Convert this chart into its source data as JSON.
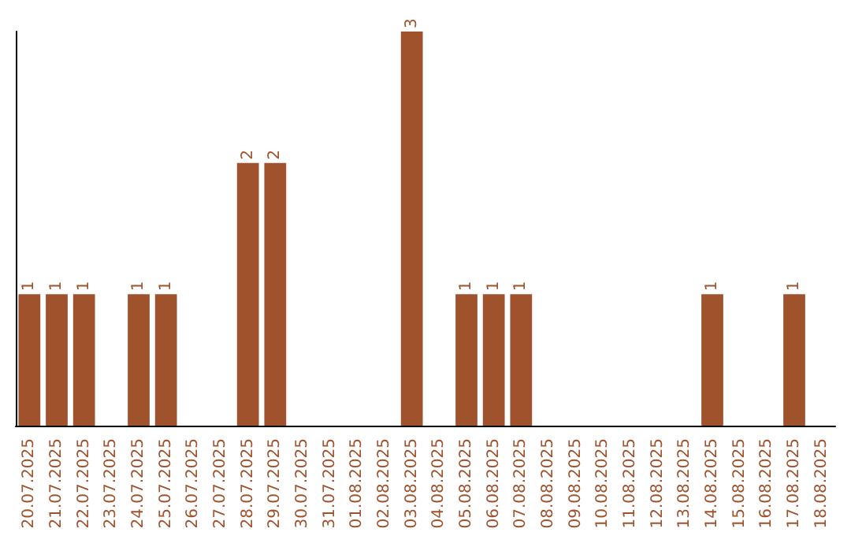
{
  "chart_data": {
    "type": "bar",
    "categories": [
      "20.07.2025",
      "21.07.2025",
      "22.07.2025",
      "23.07.2025",
      "24.07.2025",
      "25.07.2025",
      "26.07.2025",
      "27.07.2025",
      "28.07.2025",
      "29.07.2025",
      "30.07.2025",
      "31.07.2025",
      "01.08.2025",
      "02.08.2025",
      "03.08.2025",
      "04.08.2025",
      "05.08.2025",
      "06.08.2025",
      "07.08.2025",
      "08.08.2025",
      "09.08.2025",
      "10.08.2025",
      "11.08.2025",
      "12.08.2025",
      "13.08.2025",
      "14.08.2025",
      "15.08.2025",
      "16.08.2025",
      "17.08.2025",
      "18.08.2025"
    ],
    "values": [
      1,
      1,
      1,
      0,
      1,
      1,
      0,
      0,
      2,
      2,
      0,
      0,
      0,
      0,
      3,
      0,
      1,
      1,
      1,
      0,
      0,
      0,
      0,
      0,
      0,
      1,
      0,
      0,
      1,
      0
    ],
    "value_labels": [
      "1",
      "1",
      "1",
      null,
      "1",
      "1",
      null,
      null,
      "2",
      "2",
      null,
      null,
      null,
      null,
      "3",
      null,
      "1",
      "1",
      "1",
      null,
      null,
      null,
      null,
      null,
      null,
      "1",
      null,
      null,
      "1",
      null
    ],
    "color": "#a0522d",
    "tick_labels": "x"
  }
}
